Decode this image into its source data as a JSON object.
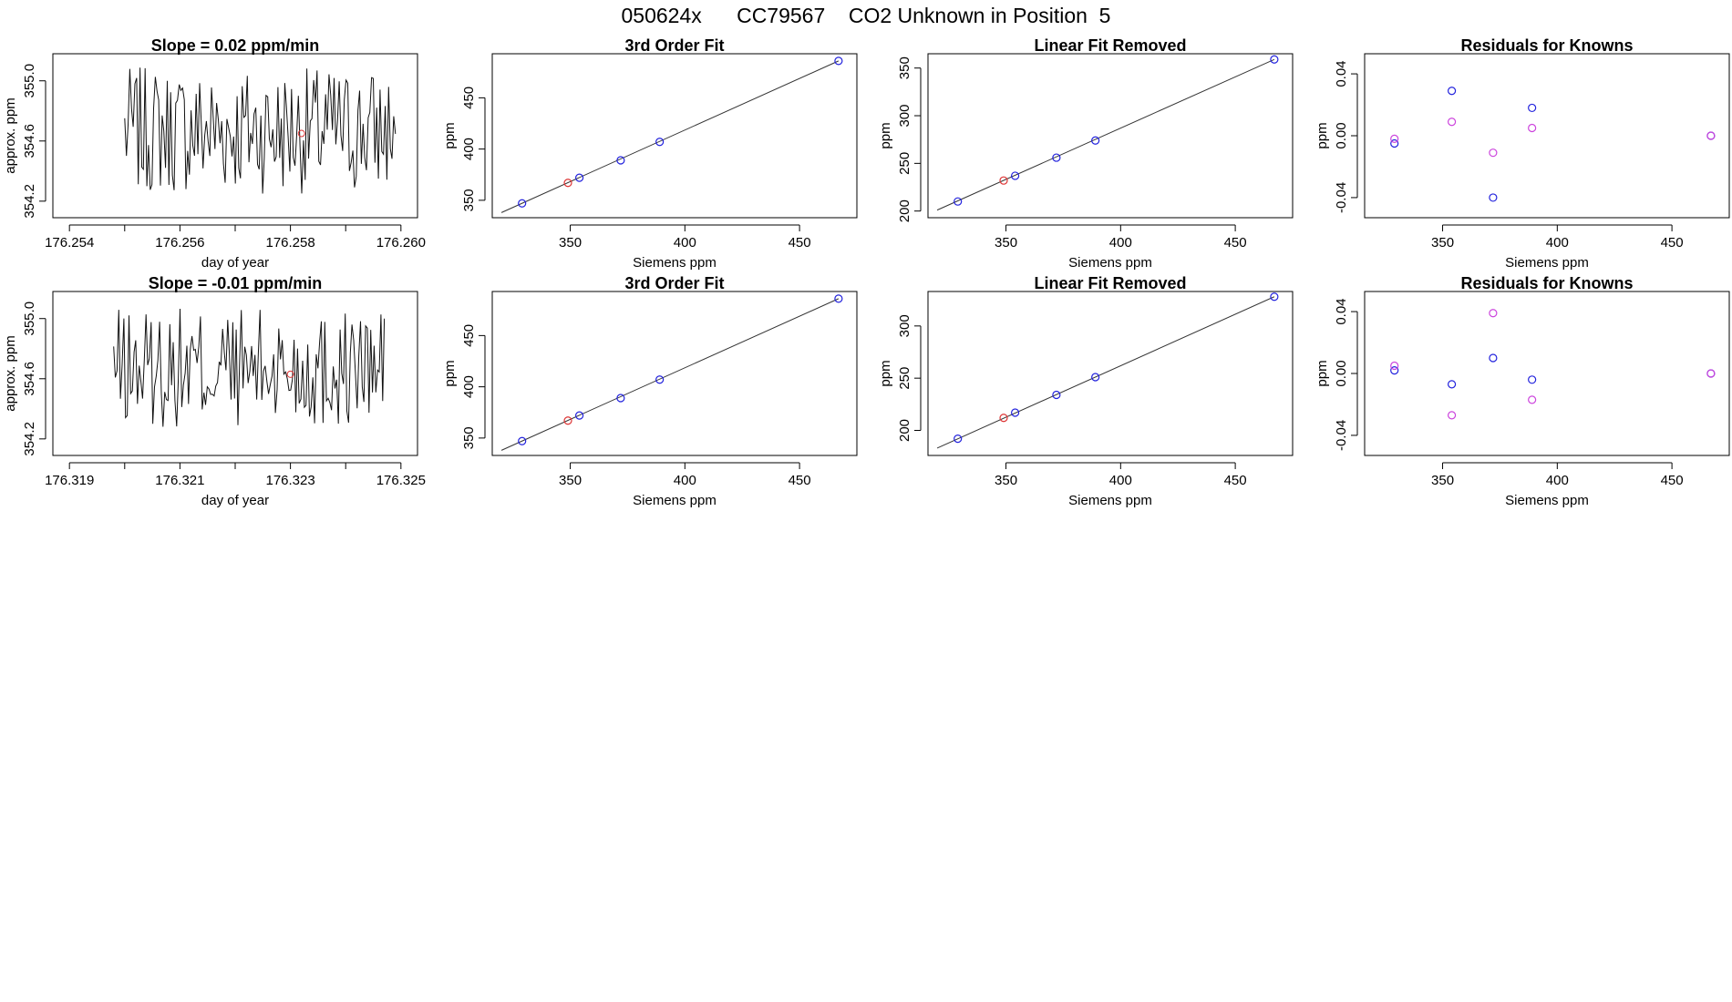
{
  "page": {
    "title": "050624x      CC79567    CO2 Unknown in Position  5"
  },
  "colors": {
    "known": "#2222dd",
    "unknown": "#dd3333",
    "residual2": "#cc44dd",
    "line": "#333333",
    "axis": "#000000"
  },
  "chart_data": [
    {
      "id": "r1-timeseries",
      "type": "line",
      "title": "Slope =  0.02  ppm/min",
      "xlabel": "day of year",
      "ylabel": "approx. ppm",
      "xlim": [
        176.2537,
        176.2603
      ],
      "ylim": [
        354.09,
        355.18
      ],
      "xticks": [
        176.254,
        176.255,
        176.256,
        176.257,
        176.258,
        176.259,
        176.26
      ],
      "xtick_labels": [
        "176.254",
        "",
        "176.256",
        "",
        "176.258",
        "",
        "176.260"
      ],
      "yticks": [
        354.2,
        354.6,
        355.0
      ],
      "ytick_labels": [
        "354.2",
        "354.6",
        "355.0"
      ],
      "series_x_start": 176.255,
      "series_x_end": 176.2599,
      "series_n": 160,
      "series_seed": 7,
      "series_center": 354.67,
      "series_spread": 0.42,
      "unknown_point": {
        "x": 176.2582,
        "y": 354.65
      }
    },
    {
      "id": "r1-fit",
      "type": "scatter",
      "title": "3rd Order Fit",
      "xlabel": "Siemens ppm",
      "ylabel": "ppm",
      "xlim": [
        316,
        475
      ],
      "ylim": [
        333,
        493
      ],
      "xticks": [
        350,
        400,
        450
      ],
      "xtick_labels": [
        "350",
        "400",
        "450"
      ],
      "yticks": [
        350,
        400,
        450
      ],
      "ytick_labels": [
        "350",
        "400",
        "450"
      ],
      "line": {
        "x": [
          320,
          467
        ],
        "y": [
          338,
          486
        ]
      },
      "knowns": {
        "x": [
          329,
          354,
          372,
          389,
          467
        ],
        "y": [
          347,
          372,
          389,
          407,
          486
        ]
      },
      "unknown": {
        "x": [
          349
        ],
        "y": [
          367
        ]
      }
    },
    {
      "id": "r1-linear",
      "type": "scatter",
      "title": "Linear Fit Removed",
      "xlabel": "Siemens ppm",
      "ylabel": "ppm",
      "xlim": [
        316,
        475
      ],
      "ylim": [
        193,
        365
      ],
      "xticks": [
        350,
        400,
        450
      ],
      "xtick_labels": [
        "350",
        "400",
        "450"
      ],
      "yticks": [
        200,
        250,
        300,
        350
      ],
      "ytick_labels": [
        "200",
        "250",
        "300",
        "350"
      ],
      "line": {
        "x": [
          320,
          467
        ],
        "y": [
          201,
          359
        ]
      },
      "knowns": {
        "x": [
          329,
          354,
          372,
          389,
          467
        ],
        "y": [
          210,
          237,
          256,
          274,
          359
        ]
      },
      "unknown": {
        "x": [
          349
        ],
        "y": [
          232
        ]
      }
    },
    {
      "id": "r1-residuals",
      "type": "scatter",
      "title": "Residuals for Knowns",
      "xlabel": "Siemens ppm",
      "ylabel": "ppm",
      "xlim": [
        316,
        475
      ],
      "ylim": [
        -0.053,
        0.053
      ],
      "xticks": [
        350,
        400,
        450
      ],
      "xtick_labels": [
        "350",
        "400",
        "450"
      ],
      "yticks": [
        -0.04,
        0.0,
        0.04
      ],
      "ytick_labels": [
        "-0.04",
        "0.00",
        "0.04"
      ],
      "series": [
        {
          "name": "knowns",
          "x": [
            329,
            354,
            372,
            389,
            467
          ],
          "y": [
            -0.005,
            0.029,
            -0.04,
            0.018,
            0.0
          ]
        },
        {
          "name": "alt",
          "x": [
            329,
            354,
            372,
            389,
            467
          ],
          "y": [
            -0.002,
            0.009,
            -0.011,
            0.005,
            0.0
          ]
        }
      ]
    },
    {
      "id": "r2-timeseries",
      "type": "line",
      "title": "Slope =  -0.01  ppm/min",
      "xlabel": "day of year",
      "ylabel": "approx. ppm",
      "xlim": [
        176.3187,
        176.3253
      ],
      "ylim": [
        354.09,
        355.18
      ],
      "xticks": [
        176.319,
        176.32,
        176.321,
        176.322,
        176.323,
        176.324,
        176.325
      ],
      "xtick_labels": [
        "176.319",
        "",
        "176.321",
        "",
        "176.323",
        "",
        "176.325"
      ],
      "yticks": [
        354.2,
        354.6,
        355.0
      ],
      "ytick_labels": [
        "354.2",
        "354.6",
        "355.0"
      ],
      "series_x_start": 176.3198,
      "series_x_end": 176.3247,
      "series_n": 160,
      "series_seed": 13,
      "series_center": 354.67,
      "series_spread": 0.4,
      "unknown_point": {
        "x": 176.323,
        "y": 354.63
      }
    },
    {
      "id": "r2-fit",
      "type": "scatter",
      "title": "3rd Order Fit",
      "xlabel": "Siemens ppm",
      "ylabel": "ppm",
      "xlim": [
        316,
        475
      ],
      "ylim": [
        333,
        493
      ],
      "xticks": [
        350,
        400,
        450
      ],
      "xtick_labels": [
        "350",
        "400",
        "450"
      ],
      "yticks": [
        350,
        400,
        450
      ],
      "ytick_labels": [
        "350",
        "400",
        "450"
      ],
      "line": {
        "x": [
          320,
          467
        ],
        "y": [
          338,
          486
        ]
      },
      "knowns": {
        "x": [
          329,
          354,
          372,
          389,
          467
        ],
        "y": [
          347,
          372,
          389,
          407,
          486
        ]
      },
      "unknown": {
        "x": [
          349
        ],
        "y": [
          367
        ]
      }
    },
    {
      "id": "r2-linear",
      "type": "scatter",
      "title": "Linear Fit Removed",
      "xlabel": "Siemens ppm",
      "ylabel": "ppm",
      "xlim": [
        316,
        475
      ],
      "ylim": [
        176,
        333
      ],
      "xticks": [
        350,
        400,
        450
      ],
      "xtick_labels": [
        "350",
        "400",
        "450"
      ],
      "yticks": [
        200,
        250,
        300
      ],
      "ytick_labels": [
        "200",
        "250",
        "300"
      ],
      "line": {
        "x": [
          320,
          467
        ],
        "y": [
          183,
          328
        ]
      },
      "knowns": {
        "x": [
          329,
          354,
          372,
          389,
          467
        ],
        "y": [
          192,
          217,
          234,
          251,
          328
        ]
      },
      "unknown": {
        "x": [
          349
        ],
        "y": [
          212
        ]
      }
    },
    {
      "id": "r2-residuals",
      "type": "scatter",
      "title": "Residuals for Knowns",
      "xlabel": "Siemens ppm",
      "ylabel": "ppm",
      "xlim": [
        316,
        475
      ],
      "ylim": [
        -0.053,
        0.053
      ],
      "xticks": [
        350,
        400,
        450
      ],
      "xtick_labels": [
        "350",
        "400",
        "450"
      ],
      "yticks": [
        -0.04,
        0.0,
        0.04
      ],
      "ytick_labels": [
        "-0.04",
        "0.00",
        "0.04"
      ],
      "series": [
        {
          "name": "knowns",
          "x": [
            329,
            354,
            372,
            389,
            467
          ],
          "y": [
            0.002,
            -0.007,
            0.01,
            -0.004,
            0.0
          ]
        },
        {
          "name": "alt",
          "x": [
            329,
            354,
            372,
            389,
            467
          ],
          "y": [
            0.005,
            -0.027,
            0.039,
            -0.017,
            0.0
          ]
        }
      ]
    }
  ]
}
